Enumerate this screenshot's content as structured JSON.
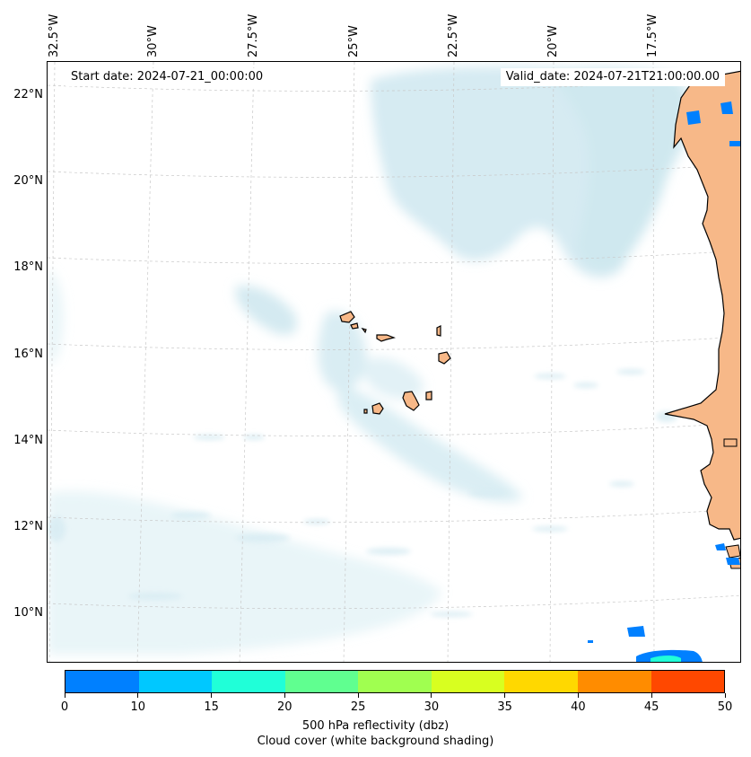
{
  "map": {
    "start_date": "Start date: 2024-07-21_00:00:00",
    "valid_date": "Valid_date: 2024-07-21T21:00:00.00",
    "lon_labels": [
      "32.5°W",
      "30°W",
      "27.5°W",
      "25°W",
      "22.5°W",
      "20°W",
      "17.5°W"
    ],
    "lat_labels": [
      "22°N",
      "20°N",
      "18°N",
      "16°N",
      "14°N",
      "12°N",
      "10°N"
    ],
    "land_color": "#f7b888",
    "cloud_color": "#cfe8f0",
    "coastline_color": "#000000"
  },
  "colorbar": {
    "ticks": [
      "0",
      "10",
      "15",
      "20",
      "25",
      "30",
      "35",
      "40",
      "45",
      "50"
    ],
    "colors": [
      "#0080ff",
      "#00c8ff",
      "#20ffd8",
      "#60ff90",
      "#a0ff50",
      "#d8ff20",
      "#ffd800",
      "#ff8c00",
      "#ff4800"
    ],
    "label": "500 hPa reflectivity (dbz)",
    "sublabel": "Cloud cover (white background shading)"
  }
}
